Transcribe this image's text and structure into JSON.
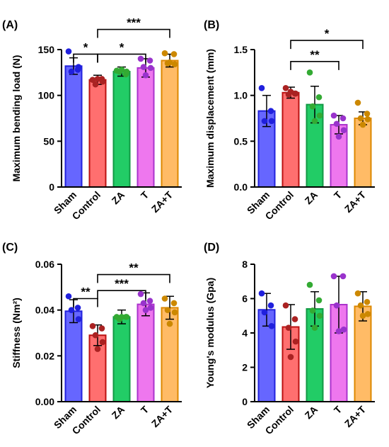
{
  "categories": [
    "Sham",
    "Control",
    "ZA",
    "T",
    "ZA+T"
  ],
  "colors": {
    "fills": [
      "#6666ff",
      "#ff6f6f",
      "#22cc66",
      "#ee77ee",
      "#ffbb66"
    ],
    "edges": [
      "#2222dd",
      "#bb1111",
      "#119944",
      "#aa33cc",
      "#dd8800"
    ],
    "points": [
      "#2020dd",
      "#aa2222",
      "#33aa33",
      "#9933cc",
      "#cc8800"
    ]
  },
  "chart_data": [
    {
      "type": "bar",
      "panel_label": "(A)",
      "title": "",
      "xlabel": "",
      "ylabel": "Maximum bending load (N)",
      "ylim": [
        0,
        150
      ],
      "yticks": [
        "0",
        "50",
        "100",
        "150"
      ],
      "categories": [
        "Sham",
        "Control",
        "ZA",
        "T",
        "ZA+T"
      ],
      "values": [
        132,
        117,
        126,
        130,
        138
      ],
      "errors": [
        9,
        5,
        5,
        10,
        7
      ],
      "points": [
        [
          148,
          128,
          126,
          131
        ],
        [
          117,
          118,
          112,
          115,
          118
        ],
        [
          127,
          123,
          126,
          126,
          128
        ],
        [
          140,
          138,
          131,
          130,
          122
        ],
        [
          146,
          145,
          135,
          134,
          136
        ]
      ],
      "significance": [
        {
          "from": 0,
          "to": 1,
          "label": "*",
          "level": 145
        },
        {
          "from": 1,
          "to": 3,
          "label": "*",
          "level": 145
        },
        {
          "from": 1,
          "to": 4,
          "label": "***",
          "level": 172
        }
      ]
    },
    {
      "type": "bar",
      "panel_label": "(B)",
      "title": "",
      "xlabel": "",
      "ylabel": "Maximum displacement (mm)",
      "ylim": [
        0,
        1.5
      ],
      "yticks": [
        "0.0",
        "0.5",
        "1.0",
        "1.5"
      ],
      "categories": [
        "Sham",
        "Control",
        "ZA",
        "T",
        "ZA+T"
      ],
      "values": [
        0.83,
        1.03,
        0.9,
        0.68,
        0.75
      ],
      "errors": [
        0.17,
        0.06,
        0.2,
        0.1,
        0.07
      ],
      "points": [
        [
          1.08,
          0.83,
          0.72,
          0.72
        ],
        [
          1.08,
          1.02,
          1.01,
          1.02,
          1.04
        ],
        [
          1.25,
          0.98,
          0.88,
          0.78,
          0.72
        ],
        [
          0.78,
          0.75,
          0.69,
          0.62,
          0.55
        ],
        [
          0.92,
          0.8,
          0.75,
          0.74,
          0.68
        ]
      ],
      "significance": [
        {
          "from": 1,
          "to": 3,
          "label": "**",
          "level": 1.37
        },
        {
          "from": 1,
          "to": 4,
          "label": "*",
          "level": 1.6
        }
      ]
    },
    {
      "type": "bar",
      "panel_label": "(C)",
      "title": "",
      "xlabel": "",
      "ylabel": "Stiffness (Nm²)",
      "ylim": [
        0,
        0.06
      ],
      "yticks": [
        "0.00",
        "0.02",
        "0.04",
        "0.06"
      ],
      "categories": [
        "Sham",
        "Control",
        "ZA",
        "T",
        "ZA+T"
      ],
      "values": [
        0.0395,
        0.029,
        0.037,
        0.0425,
        0.041
      ],
      "errors": [
        0.005,
        0.0045,
        0.003,
        0.005,
        0.005
      ],
      "points": [
        [
          0.046,
          0.041,
          0.04,
          0.036
        ],
        [
          0.033,
          0.032,
          0.029,
          0.026,
          0.023
        ],
        [
          0.037,
          0.037,
          0.036,
          0.037,
          0.037
        ],
        [
          0.047,
          0.044,
          0.043,
          0.041,
          0.04
        ],
        [
          0.045,
          0.043,
          0.04,
          0.039,
          0.034
        ]
      ],
      "significance": [
        {
          "from": 0,
          "to": 1,
          "label": "**",
          "level": 0.045
        },
        {
          "from": 1,
          "to": 3,
          "label": "***",
          "level": 0.0485
        },
        {
          "from": 1,
          "to": 4,
          "label": "**",
          "level": 0.0555
        }
      ]
    },
    {
      "type": "bar",
      "panel_label": "(D)",
      "title": "",
      "xlabel": "",
      "ylabel": "Young's modulus (Gpa)",
      "ylim": [
        0,
        8
      ],
      "yticks": [
        "0",
        "2",
        "4",
        "6",
        "8"
      ],
      "categories": [
        "Sham",
        "Control",
        "ZA",
        "T",
        "ZA+T"
      ],
      "values": [
        5.35,
        4.35,
        5.4,
        5.65,
        5.55
      ],
      "errors": [
        0.95,
        1.3,
        1.0,
        1.65,
        0.85
      ],
      "points": [
        [
          6.3,
          5.6,
          5.2,
          4.4
        ],
        [
          5.6,
          4.8,
          4.3,
          3.5,
          2.6
        ],
        [
          6.8,
          5.9,
          5.3,
          5.0,
          4.3
        ],
        [
          7.3,
          7.3,
          5.6,
          4.2,
          4.1
        ],
        [
          6.3,
          5.8,
          5.6,
          5.1,
          5.0
        ]
      ],
      "significance": []
    }
  ]
}
